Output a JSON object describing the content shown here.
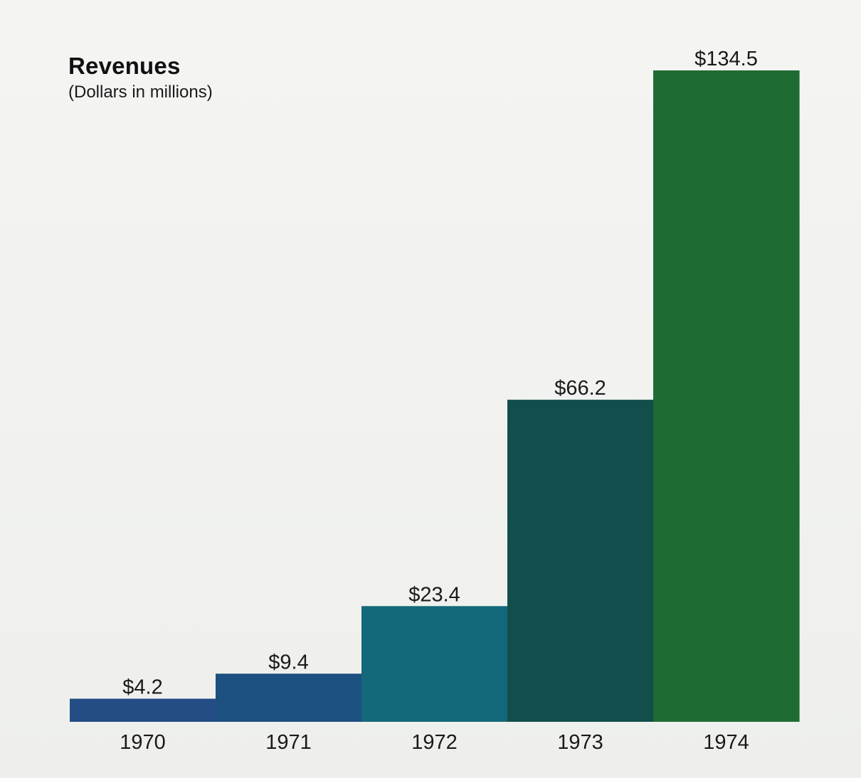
{
  "chart_data": {
    "type": "bar",
    "title": "Revenues",
    "subtitle": "(Dollars in millions)",
    "categories": [
      "1970",
      "1971",
      "1972",
      "1973",
      "1974"
    ],
    "values": [
      4.2,
      9.4,
      23.4,
      66.2,
      134.5
    ],
    "data_labels": [
      "$4.2",
      "$9.4",
      "$23.4",
      "$66.2",
      "$134.5"
    ],
    "colors": [
      "#244d86",
      "#1c5080",
      "#13687a",
      "#124e4b",
      "#1e6b34"
    ],
    "ylim": [
      0,
      134.5
    ],
    "grid": false,
    "legend": "none"
  }
}
